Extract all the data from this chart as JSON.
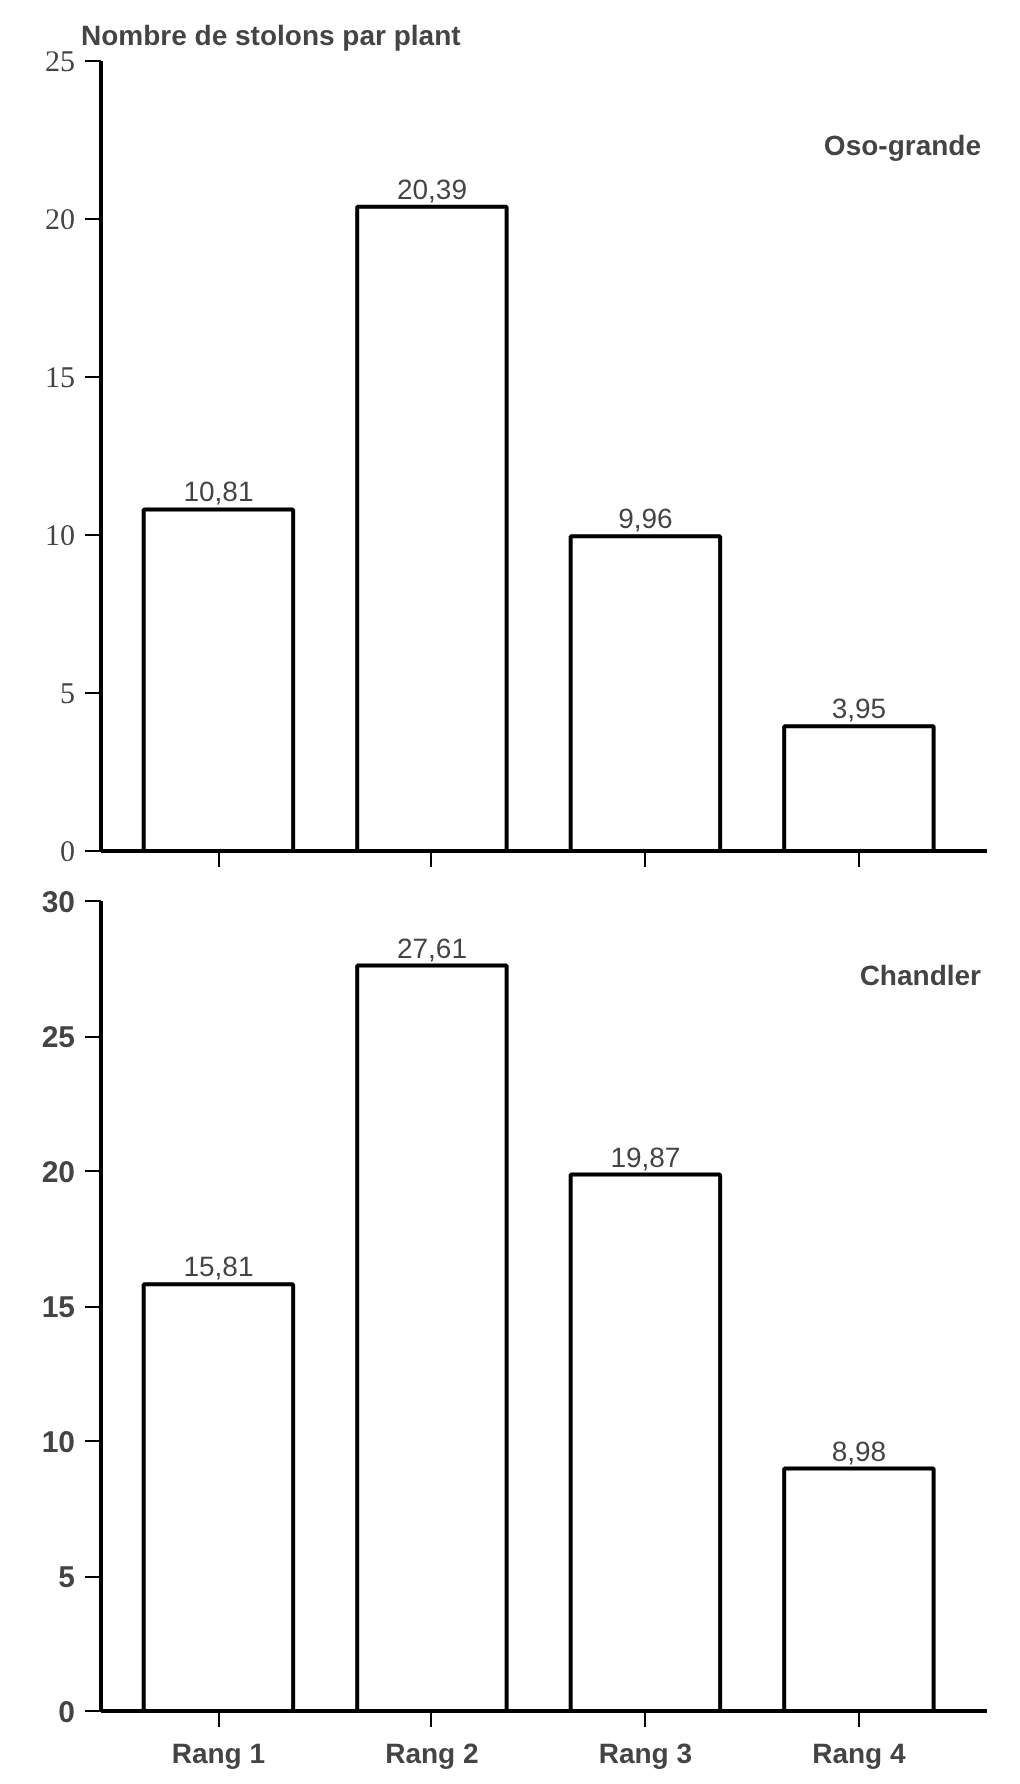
{
  "chart_data": [
    {
      "type": "bar",
      "title": "Nombre de stolons par plant",
      "annotations": [
        "Oso-grande"
      ],
      "categories": [
        null,
        null,
        null,
        null
      ],
      "values": [
        10.81,
        20.39,
        9.96,
        3.95
      ],
      "color": "#ffffff",
      "ylim": [
        0,
        25
      ],
      "yticks": [
        0,
        5,
        10,
        15,
        20,
        25
      ],
      "value_labels": [
        "10,81",
        "20,39",
        "9,96",
        "3,95"
      ],
      "tick_labels": "y",
      "grid": false
    },
    {
      "type": "bar",
      "annotations": [
        "Chandler"
      ],
      "categories": [
        "Rang 1",
        "Rang 2",
        "Rang 3",
        "Rang 4"
      ],
      "values": [
        15.81,
        27.61,
        19.87,
        8.98
      ],
      "color": "#ffffff",
      "ylim": [
        0,
        30
      ],
      "yticks": [
        0,
        5,
        10,
        15,
        20,
        25,
        30
      ],
      "value_labels": [
        "15,81",
        "27,61",
        "19,87",
        "8,98"
      ],
      "grid": false
    }
  ]
}
